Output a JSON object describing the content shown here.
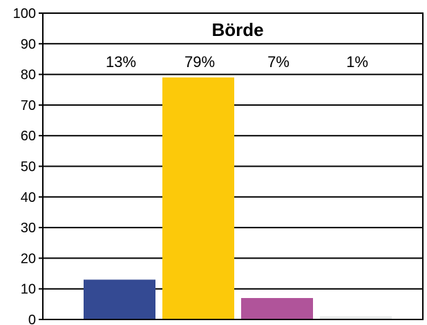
{
  "chart_data": {
    "type": "bar",
    "title": "Börde",
    "xlabel": "",
    "ylabel": "",
    "ylim": [
      0,
      100
    ],
    "yticks": [
      0,
      10,
      20,
      30,
      40,
      50,
      60,
      70,
      80,
      90,
      100
    ],
    "grid": true,
    "legend": "none",
    "categories": [
      "",
      "",
      "",
      ""
    ],
    "values": [
      13,
      79,
      7,
      1
    ],
    "data_labels": [
      "13%",
      "79%",
      "7%",
      "1%"
    ],
    "colors": [
      "#344A93",
      "#FCC90A",
      "#B0549A",
      "#E6E8E8"
    ]
  }
}
